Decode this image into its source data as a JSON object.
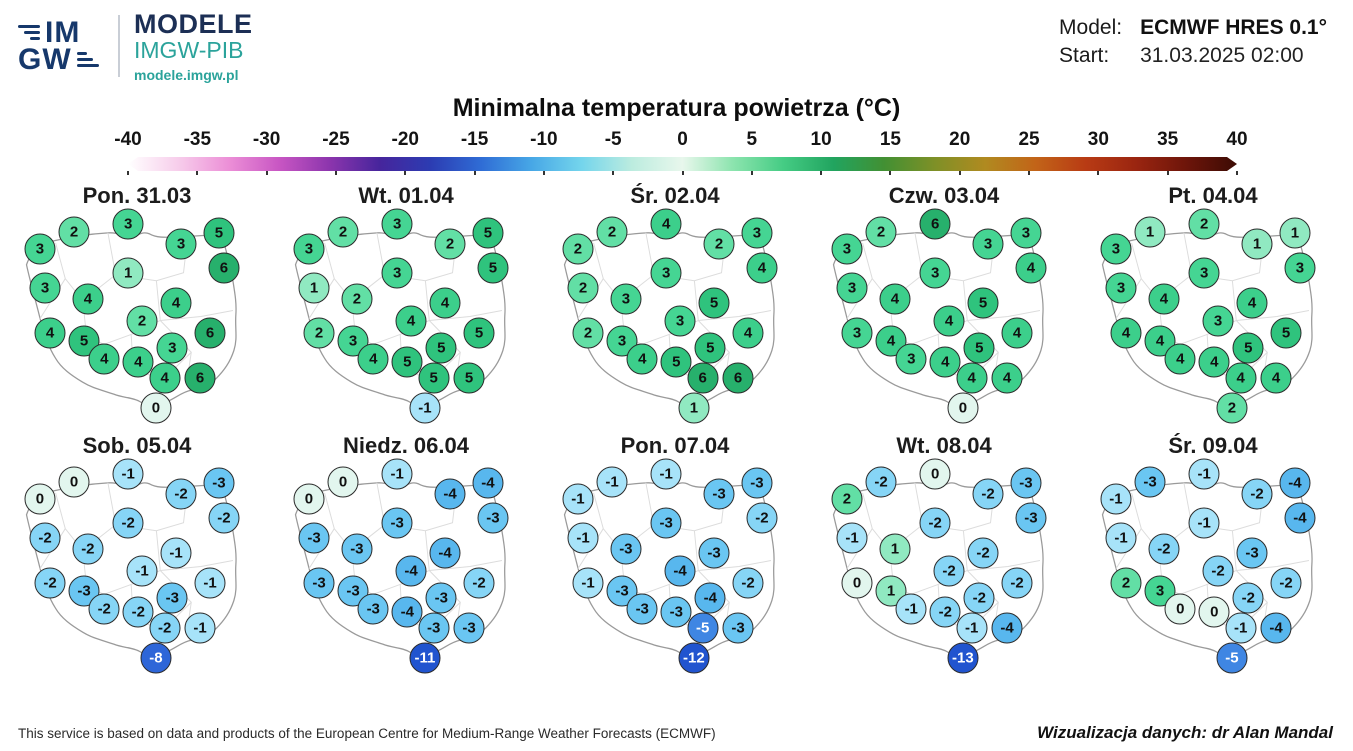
{
  "header": {
    "logo": {
      "top": "IM",
      "bottom": "GW"
    },
    "brand": {
      "title": "MODELE",
      "subtitle": "IMGW-PIB",
      "url": "modele.imgw.pl"
    },
    "model_label": "Model:",
    "model_value": "ECMWF HRES 0.1°",
    "start_label": "Start:",
    "start_value": "31.03.2025 02:00"
  },
  "title": "Minimalna temperatura powietrza (°C)",
  "footer": {
    "attribution": "This service is based on data and products of the European Centre for Medium-Range Weather Forecasts (ECMWF)",
    "credit": "Wizualizacja danych: dr Alan Mandal"
  },
  "value_colors": {
    "-13": {
      "bg": "#2154cf",
      "fg": "#ffffff"
    },
    "-12": {
      "bg": "#2154cf",
      "fg": "#ffffff"
    },
    "-11": {
      "bg": "#2154cf",
      "fg": "#ffffff"
    },
    "-8": {
      "bg": "#2e66d8",
      "fg": "#ffffff"
    },
    "-5": {
      "bg": "#3f86e3",
      "fg": "#ffffff"
    },
    "-4": {
      "bg": "#58b7ee",
      "fg": "#111111"
    },
    "-3": {
      "bg": "#6ac6f2",
      "fg": "#111111"
    },
    "-2": {
      "bg": "#86d5f6",
      "fg": "#111111"
    },
    "-1": {
      "bg": "#a7e3f9",
      "fg": "#111111"
    },
    "0": {
      "bg": "#e2f6ee",
      "fg": "#111111"
    },
    "1": {
      "bg": "#90e9c1",
      "fg": "#111111"
    },
    "2": {
      "bg": "#62dfa5",
      "fg": "#111111"
    },
    "3": {
      "bg": "#45d593",
      "fg": "#111111"
    },
    "4": {
      "bg": "#3ccf8b",
      "fg": "#111111"
    },
    "5": {
      "bg": "#2fc37d",
      "fg": "#111111"
    },
    "6": {
      "bg": "#27b06c",
      "fg": "#111111"
    }
  },
  "chart_data": {
    "type": "heatmap",
    "subtype": "poland-temperature-bubble-maps",
    "title": "Minimalna temperatura powietrza (°C)",
    "unit": "°C",
    "model": "ECMWF HRES 0.1°",
    "start": "31.03.2025 02:00",
    "colorbar": {
      "min": -40,
      "max": 40,
      "ticks": [
        -40,
        -35,
        -30,
        -25,
        -20,
        -15,
        -10,
        -5,
        0,
        5,
        10,
        15,
        20,
        25,
        30,
        35,
        40
      ],
      "gradient": [
        "#ffffff",
        "#f7cdeb",
        "#ec8fd7",
        "#c856c3",
        "#8c35ad",
        "#46259c",
        "#2c3cb2",
        "#2f6cd5",
        "#47a7e6",
        "#74d5ec",
        "#bcecdf",
        "#e8f7ec",
        "#8ce4ae",
        "#45cc84",
        "#21a45f",
        "#429033",
        "#7e9027",
        "#b08a20",
        "#c26418",
        "#b83b14",
        "#9a2510",
        "#6d150a",
        "#3c0b04"
      ]
    },
    "positions": [
      [
        11.5,
        17.0
      ],
      [
        25.0,
        9.0
      ],
      [
        46.5,
        5.0
      ],
      [
        67.5,
        14.5
      ],
      [
        82.5,
        9.5
      ],
      [
        84.5,
        25.5
      ],
      [
        46.5,
        28.0
      ],
      [
        13.5,
        35.0
      ],
      [
        30.5,
        40.0
      ],
      [
        65.5,
        42.0
      ],
      [
        52.0,
        50.5
      ],
      [
        15.5,
        56.0
      ],
      [
        29.0,
        60.0
      ],
      [
        64.0,
        63.0
      ],
      [
        79.0,
        56.0
      ],
      [
        37.0,
        68.0
      ],
      [
        50.5,
        69.5
      ],
      [
        61.0,
        77.0
      ],
      [
        75.0,
        77.0
      ],
      [
        57.5,
        91.0
      ]
    ],
    "days": [
      {
        "label": "Pon. 31.03",
        "values": [
          3,
          2,
          3,
          3,
          5,
          6,
          1,
          3,
          4,
          4,
          2,
          4,
          5,
          3,
          6,
          4,
          4,
          4,
          6,
          0
        ]
      },
      {
        "label": "Wt. 01.04",
        "values": [
          3,
          2,
          3,
          2,
          5,
          5,
          3,
          1,
          2,
          4,
          4,
          2,
          3,
          5,
          5,
          4,
          5,
          5,
          5,
          -1
        ]
      },
      {
        "label": "Śr. 02.04",
        "values": [
          2,
          2,
          4,
          2,
          3,
          4,
          3,
          2,
          3,
          5,
          3,
          2,
          3,
          5,
          4,
          4,
          5,
          6,
          6,
          1
        ]
      },
      {
        "label": "Czw. 03.04",
        "values": [
          3,
          2,
          6,
          3,
          3,
          4,
          3,
          3,
          4,
          5,
          4,
          3,
          4,
          5,
          4,
          3,
          4,
          4,
          4,
          0
        ]
      },
      {
        "label": "Pt. 04.04",
        "values": [
          3,
          1,
          2,
          1,
          1,
          3,
          3,
          3,
          4,
          4,
          3,
          4,
          4,
          5,
          5,
          4,
          4,
          4,
          4,
          2
        ]
      },
      {
        "label": "Sob. 05.04",
        "values": [
          0,
          0,
          -1,
          -2,
          -3,
          -2,
          -2,
          -2,
          -2,
          -1,
          -1,
          -2,
          -3,
          -3,
          -1,
          -2,
          -2,
          -2,
          -1,
          -8
        ]
      },
      {
        "label": "Niedz. 06.04",
        "values": [
          0,
          0,
          -1,
          -4,
          -4,
          -3,
          -3,
          -3,
          -3,
          -4,
          -4,
          -3,
          -3,
          -3,
          -2,
          -3,
          -4,
          -3,
          -3,
          -11
        ]
      },
      {
        "label": "Pon. 07.04",
        "values": [
          -1,
          -1,
          -1,
          -3,
          -3,
          -2,
          -3,
          -1,
          -3,
          -3,
          -4,
          -1,
          -3,
          -4,
          -2,
          -3,
          -3,
          -5,
          -3,
          -12
        ]
      },
      {
        "label": "Wt. 08.04",
        "values": [
          2,
          -2,
          0,
          -2,
          -3,
          -3,
          -2,
          -1,
          1,
          -2,
          -2,
          0,
          1,
          -2,
          -2,
          -1,
          -2,
          -1,
          -4,
          -13
        ]
      },
      {
        "label": "Śr. 09.04",
        "values": [
          -1,
          -3,
          -1,
          -2,
          -4,
          -4,
          -1,
          -1,
          -2,
          -3,
          -2,
          2,
          3,
          -2,
          -2,
          0,
          0,
          -1,
          -4,
          -5
        ]
      }
    ]
  }
}
